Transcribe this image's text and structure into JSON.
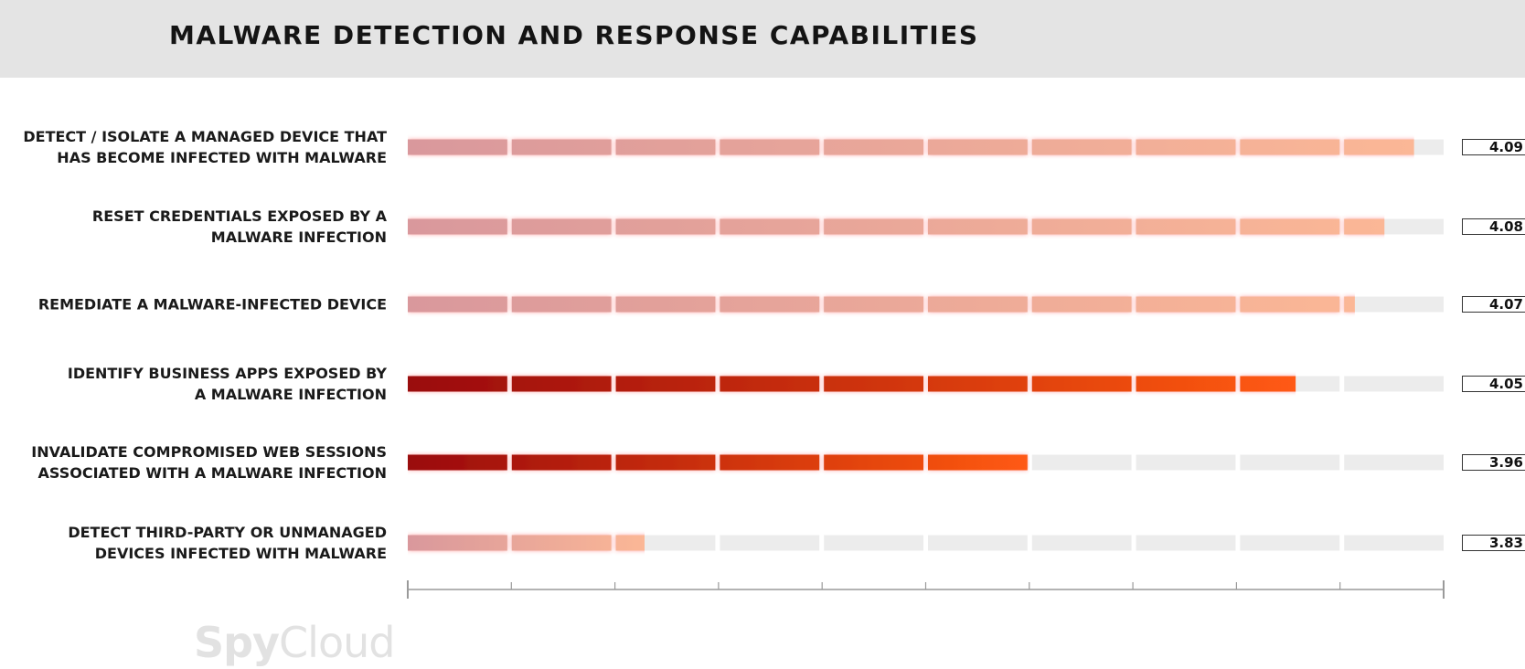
{
  "header": {
    "title": "MALWARE DETECTION AND RESPONSE CAPABILITIES"
  },
  "brand": {
    "part1": "Spy",
    "part2": "Cloud"
  },
  "colors": {
    "header_bg": "#e4e4e4",
    "track": "#ececec",
    "highlight_start": "#9a0a0a",
    "highlight_end": "#ff5a12",
    "muted_start": "#d9989c",
    "muted_end": "#fbb796"
  },
  "chart_data": {
    "type": "bar",
    "orientation": "horizontal",
    "title": "MALWARE DETECTION AND RESPONSE CAPABILITIES",
    "categories": [
      "DETECT / ISOLATE A MANAGED DEVICE THAT HAS BECOME INFECTED WITH MALWARE",
      "RESET CREDENTIALS EXPOSED BY A MALWARE INFECTION",
      "REMEDIATE A MALWARE-INFECTED DEVICE",
      "IDENTIFY BUSINESS APPS EXPOSED BY A MALWARE INFECTION",
      "INVALIDATE COMPROMISED WEB SESSIONS ASSOCIATED WITH A MALWARE INFECTION",
      "DETECT THIRD-PARTY OR UNMANAGED DEVICES INFECTED WITH MALWARE"
    ],
    "label_lines": [
      [
        "DETECT / ISOLATE A MANAGED DEVICE THAT",
        "HAS BECOME INFECTED WITH MALWARE"
      ],
      [
        "RESET CREDENTIALS EXPOSED BY A",
        "MALWARE INFECTION"
      ],
      [
        "REMEDIATE A MALWARE-INFECTED DEVICE"
      ],
      [
        "IDENTIFY BUSINESS APPS EXPOSED BY",
        "A MALWARE INFECTION"
      ],
      [
        "INVALIDATE COMPROMISED WEB SESSIONS",
        "ASSOCIATED WITH A MALWARE INFECTION"
      ],
      [
        "DETECT THIRD-PARTY OR UNMANAGED",
        "DEVICES INFECTED WITH MALWARE"
      ]
    ],
    "values": [
      4.09,
      4.08,
      4.07,
      4.05,
      3.96,
      3.83
    ],
    "value_labels": [
      "4.09",
      "4.08",
      "4.07",
      "4.05",
      "3.96",
      "3.83"
    ],
    "highlighted": [
      false,
      false,
      false,
      true,
      true,
      false
    ],
    "xlim": [
      3.75,
      4.1
    ],
    "segments": 10,
    "grid": false
  }
}
